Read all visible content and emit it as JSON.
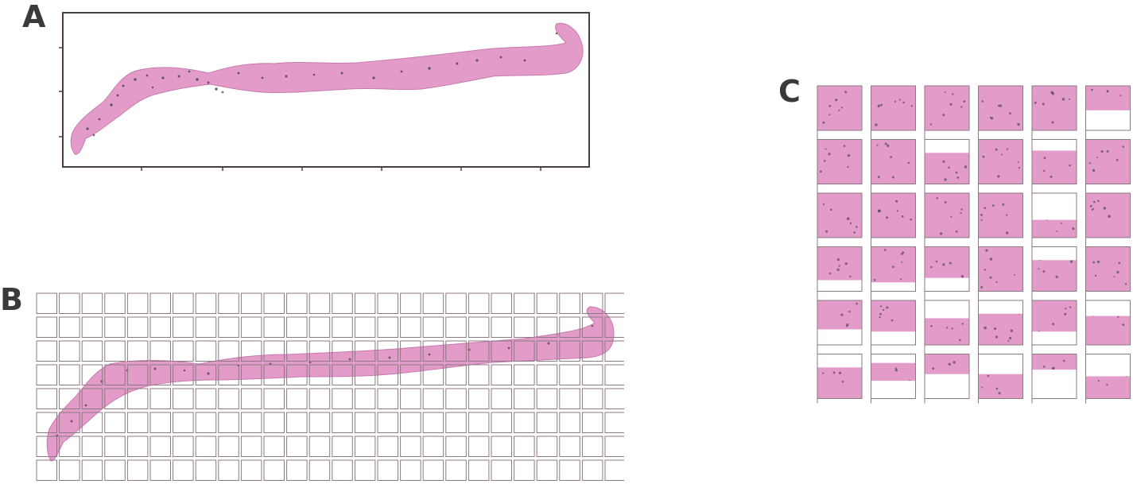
{
  "panels": {
    "a": {
      "label": "A"
    },
    "b": {
      "label": "B"
    },
    "c": {
      "label": "C"
    }
  },
  "colors": {
    "tissue": "#e39cc9",
    "tissue_dark": "#c879ad",
    "nuclei": "#3b3b48",
    "frame": "#4a3d44",
    "grid": "#8a7a82",
    "background": "#ffffff"
  },
  "grid_b": {
    "columns": 26,
    "rows": 8
  },
  "grid_c": {
    "columns": 6,
    "rows": 6
  }
}
